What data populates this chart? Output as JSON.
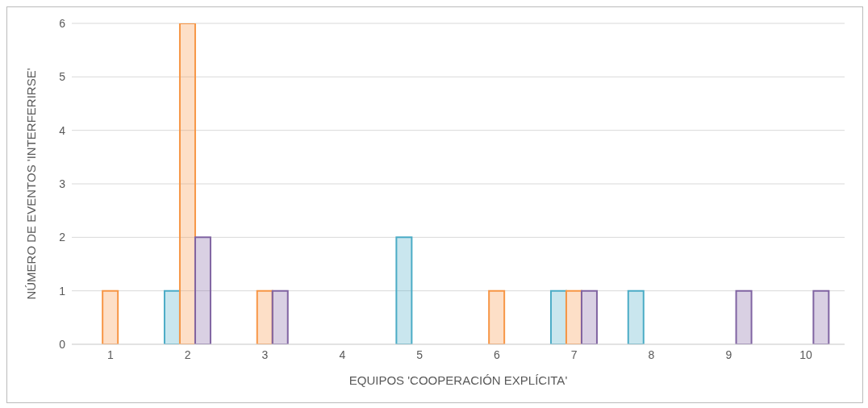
{
  "chart_data": {
    "type": "bar",
    "xlabel": "EQUIPOS 'COOPERACIÓN EXPLÍCITA'",
    "ylabel": "NÚMERO DE EVENTOS 'INTERFERIRSE'",
    "categories": [
      "1",
      "2",
      "3",
      "4",
      "5",
      "6",
      "7",
      "8",
      "9",
      "10"
    ],
    "series": [
      {
        "color": "#4bacc6",
        "values": [
          0,
          1,
          0,
          0,
          2,
          0,
          1,
          1,
          0,
          0
        ]
      },
      {
        "color": "#f79646",
        "values": [
          1,
          6,
          1,
          0,
          0,
          1,
          1,
          0,
          0,
          0
        ]
      },
      {
        "color": "#8064a2",
        "values": [
          0,
          2,
          1,
          0,
          0,
          0,
          1,
          0,
          1,
          1
        ]
      }
    ],
    "ylim": [
      0,
      6
    ],
    "yticks": [
      0,
      1,
      2,
      3,
      4,
      5,
      6
    ],
    "grid": "y"
  }
}
